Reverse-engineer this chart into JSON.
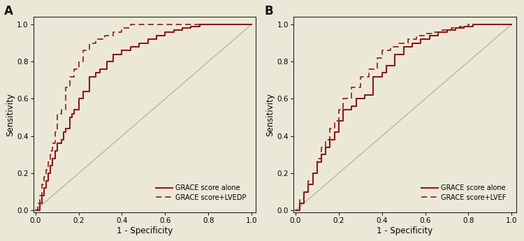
{
  "background_color": "#ece8d8",
  "curve_color": "#8b1a1a",
  "diag_color": "#b8b0a0",
  "panel_A": {
    "label": "A",
    "legend": [
      "GRACE score alone",
      "GRACE score+LVEDP"
    ],
    "grace_x": [
      0.0,
      0.02,
      0.02,
      0.03,
      0.03,
      0.04,
      0.04,
      0.05,
      0.05,
      0.06,
      0.06,
      0.07,
      0.07,
      0.08,
      0.08,
      0.09,
      0.09,
      0.1,
      0.1,
      0.12,
      0.12,
      0.13,
      0.13,
      0.14,
      0.14,
      0.16,
      0.16,
      0.17,
      0.17,
      0.18,
      0.18,
      0.2,
      0.2,
      0.22,
      0.22,
      0.25,
      0.25,
      0.28,
      0.28,
      0.3,
      0.3,
      0.33,
      0.33,
      0.36,
      0.36,
      0.4,
      0.4,
      0.44,
      0.44,
      0.48,
      0.48,
      0.52,
      0.52,
      0.56,
      0.56,
      0.6,
      0.6,
      0.64,
      0.64,
      0.68,
      0.68,
      0.72,
      0.72,
      0.76,
      0.76,
      0.8,
      0.8,
      0.84,
      0.84,
      0.88,
      0.88,
      1.0
    ],
    "grace_y": [
      0.0,
      0.0,
      0.04,
      0.04,
      0.08,
      0.08,
      0.12,
      0.12,
      0.16,
      0.16,
      0.2,
      0.2,
      0.24,
      0.24,
      0.28,
      0.28,
      0.32,
      0.32,
      0.36,
      0.36,
      0.38,
      0.38,
      0.42,
      0.42,
      0.44,
      0.44,
      0.5,
      0.5,
      0.52,
      0.52,
      0.54,
      0.54,
      0.6,
      0.6,
      0.64,
      0.64,
      0.72,
      0.72,
      0.74,
      0.74,
      0.76,
      0.76,
      0.8,
      0.8,
      0.84,
      0.84,
      0.86,
      0.86,
      0.88,
      0.88,
      0.9,
      0.9,
      0.92,
      0.92,
      0.94,
      0.94,
      0.96,
      0.96,
      0.97,
      0.97,
      0.98,
      0.98,
      0.99,
      0.99,
      1.0,
      1.0,
      1.0,
      1.0,
      1.0,
      1.0,
      1.0,
      1.0
    ],
    "lvedp_x": [
      0.0,
      0.01,
      0.01,
      0.02,
      0.02,
      0.03,
      0.03,
      0.04,
      0.04,
      0.05,
      0.05,
      0.06,
      0.06,
      0.07,
      0.07,
      0.08,
      0.08,
      0.09,
      0.09,
      0.1,
      0.1,
      0.12,
      0.12,
      0.14,
      0.14,
      0.16,
      0.16,
      0.18,
      0.18,
      0.2,
      0.2,
      0.22,
      0.22,
      0.25,
      0.25,
      0.28,
      0.28,
      0.32,
      0.32,
      0.36,
      0.36,
      0.4,
      0.4,
      0.44,
      0.44,
      0.5,
      0.5,
      0.56,
      0.56,
      0.62,
      0.62,
      0.68,
      0.68,
      0.74,
      0.74,
      0.8,
      0.8,
      1.0
    ],
    "lvedp_y": [
      0.0,
      0.0,
      0.04,
      0.04,
      0.08,
      0.08,
      0.14,
      0.14,
      0.18,
      0.18,
      0.22,
      0.22,
      0.26,
      0.26,
      0.32,
      0.32,
      0.36,
      0.36,
      0.42,
      0.42,
      0.52,
      0.52,
      0.54,
      0.54,
      0.66,
      0.66,
      0.72,
      0.72,
      0.76,
      0.76,
      0.8,
      0.8,
      0.86,
      0.86,
      0.9,
      0.9,
      0.92,
      0.92,
      0.94,
      0.94,
      0.96,
      0.96,
      0.98,
      0.98,
      1.0,
      1.0,
      1.0,
      1.0,
      1.0,
      1.0,
      1.0,
      1.0,
      1.0,
      1.0,
      1.0,
      1.0,
      1.0,
      1.0
    ]
  },
  "panel_B": {
    "label": "B",
    "legend": [
      "GRACE score alone",
      "GRACE score+LVEF"
    ],
    "grace_x": [
      0.0,
      0.02,
      0.02,
      0.04,
      0.04,
      0.06,
      0.06,
      0.08,
      0.08,
      0.1,
      0.1,
      0.12,
      0.12,
      0.14,
      0.14,
      0.16,
      0.16,
      0.18,
      0.18,
      0.2,
      0.2,
      0.22,
      0.22,
      0.26,
      0.26,
      0.28,
      0.28,
      0.32,
      0.32,
      0.36,
      0.36,
      0.4,
      0.4,
      0.42,
      0.42,
      0.46,
      0.46,
      0.5,
      0.5,
      0.54,
      0.54,
      0.58,
      0.58,
      0.62,
      0.62,
      0.66,
      0.66,
      0.7,
      0.7,
      0.74,
      0.74,
      0.78,
      0.78,
      0.82,
      0.82,
      0.86,
      0.86,
      0.88,
      0.88,
      0.92,
      0.92,
      1.0
    ],
    "grace_y": [
      0.0,
      0.0,
      0.04,
      0.04,
      0.1,
      0.1,
      0.14,
      0.14,
      0.2,
      0.2,
      0.26,
      0.26,
      0.3,
      0.3,
      0.34,
      0.34,
      0.38,
      0.38,
      0.42,
      0.42,
      0.48,
      0.48,
      0.54,
      0.54,
      0.56,
      0.56,
      0.6,
      0.6,
      0.62,
      0.62,
      0.72,
      0.72,
      0.74,
      0.74,
      0.78,
      0.78,
      0.84,
      0.84,
      0.88,
      0.88,
      0.9,
      0.9,
      0.92,
      0.92,
      0.94,
      0.94,
      0.96,
      0.96,
      0.97,
      0.97,
      0.98,
      0.98,
      0.99,
      0.99,
      1.0,
      1.0,
      1.0,
      1.0,
      1.0,
      1.0,
      1.0,
      1.0
    ],
    "lvef_x": [
      0.0,
      0.02,
      0.02,
      0.04,
      0.04,
      0.06,
      0.06,
      0.08,
      0.08,
      0.1,
      0.1,
      0.12,
      0.12,
      0.14,
      0.14,
      0.16,
      0.16,
      0.18,
      0.18,
      0.2,
      0.2,
      0.22,
      0.22,
      0.26,
      0.26,
      0.3,
      0.3,
      0.34,
      0.34,
      0.38,
      0.38,
      0.4,
      0.4,
      0.44,
      0.44,
      0.48,
      0.48,
      0.52,
      0.52,
      0.56,
      0.56,
      0.6,
      0.6,
      0.64,
      0.64,
      0.68,
      0.68,
      0.72,
      0.72,
      0.76,
      0.76,
      0.8,
      0.8,
      0.84,
      0.84,
      0.88,
      0.88,
      1.0
    ],
    "lvef_y": [
      0.0,
      0.0,
      0.06,
      0.06,
      0.1,
      0.1,
      0.16,
      0.16,
      0.2,
      0.2,
      0.28,
      0.28,
      0.34,
      0.34,
      0.38,
      0.38,
      0.44,
      0.44,
      0.48,
      0.48,
      0.54,
      0.54,
      0.6,
      0.6,
      0.66,
      0.66,
      0.72,
      0.72,
      0.76,
      0.76,
      0.82,
      0.82,
      0.86,
      0.86,
      0.88,
      0.88,
      0.9,
      0.9,
      0.92,
      0.92,
      0.94,
      0.94,
      0.95,
      0.95,
      0.96,
      0.96,
      0.97,
      0.97,
      0.98,
      0.98,
      0.99,
      0.99,
      1.0,
      1.0,
      1.0,
      1.0,
      1.0,
      1.0
    ]
  },
  "xlabel": "1 - Specificity",
  "ylabel": "Sensitivity",
  "xticks": [
    0.0,
    0.2,
    0.4,
    0.6,
    0.8,
    1.0
  ],
  "yticks": [
    0.0,
    0.2,
    0.4,
    0.6,
    0.8,
    1.0
  ],
  "tick_fontsize": 7.5,
  "label_fontsize": 8.5,
  "legend_fontsize": 7.0,
  "panel_label_fontsize": 12
}
